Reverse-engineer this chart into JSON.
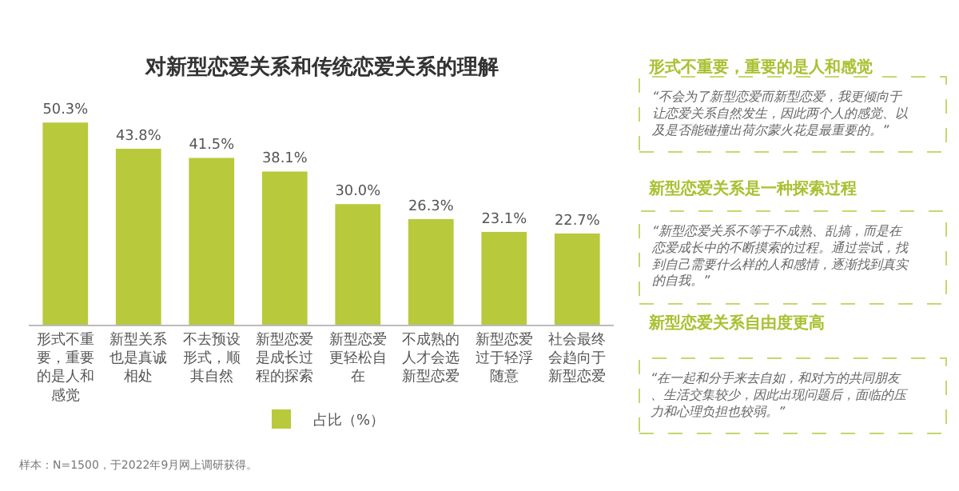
{
  "chart_data": [
    {
      "type": "bar",
      "title": "对新型恋爱关系和传统恋爱关系的理解",
      "categories": [
        "形式不重要，重要的是人和感觉",
        "新型关系也是真诚相处",
        "不去预设形式，顺其自然",
        "新型恋爱是成长过程的探索",
        "新型恋爱更轻松自在",
        "不成熟的人才会选新型恋爱",
        "新型恋爱过于轻浮随意",
        "社会最终会趋向于新型恋爱"
      ],
      "series": [
        {
          "name": "占比（%）",
          "color": "#b8c93c",
          "values": [
            50.3,
            43.8,
            41.5,
            38.1,
            30.0,
            26.3,
            23.1,
            22.7
          ],
          "value_labels": [
            "50.3%",
            "43.8%",
            "41.5%",
            "38.1%",
            "30.0%",
            "26.3%",
            "23.1%",
            "22.7%"
          ]
        }
      ],
      "legend": "bottom",
      "annotations": [
        "样本：N=1500，于2022年9月网上调研获得。"
      ]
    },
    {
      "type": "other",
      "annotations": [
        "形式不重要，重要的是人和感觉",
        "“不会为了新型恋爱而新型恋爱，我更倾向于让恋爱关系自然发生，因此两个人的感觉、以及是否能碰撞出荷尔蒙火花是最重要的。”",
        "新型恋爱关系是一种探索过程",
        "“新型恋爱关系不等于不成熟、乱搞，而是在恋爱成长中的不断摸索的过程。通过尝试，找到自己需要什么样的人和感情，逐渐找到真实的自我。”",
        "新型恋爱关系自由度更高",
        "“在一起和分手来去自如，和对方的共同朋友、生活交集较少，因此出现问题后，面临的压力和心理负担也较弱。”"
      ]
    }
  ]
}
